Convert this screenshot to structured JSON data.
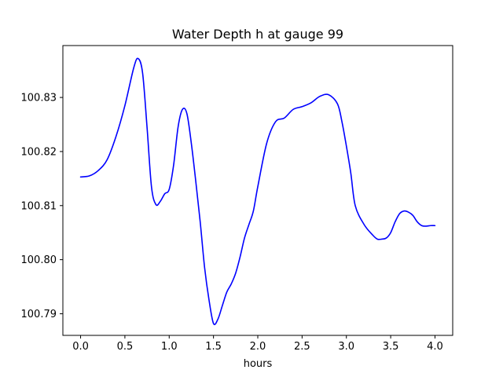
{
  "chart_data": {
    "type": "line",
    "title": "Water Depth h at gauge 99",
    "xlabel": "hours",
    "ylabel": "",
    "xlim": [
      -0.2,
      4.2
    ],
    "ylim": [
      100.786,
      100.8396
    ],
    "xticks": [
      0.0,
      0.5,
      1.0,
      1.5,
      2.0,
      2.5,
      3.0,
      3.5,
      4.0
    ],
    "xtick_labels": [
      "0.0",
      "0.5",
      "1.0",
      "1.5",
      "2.0",
      "2.5",
      "3.0",
      "3.5",
      "4.0"
    ],
    "yticks": [
      100.79,
      100.8,
      100.81,
      100.82,
      100.83
    ],
    "ytick_labels": [
      "100.79",
      "100.80",
      "100.81",
      "100.82",
      "100.83"
    ],
    "grid": false,
    "series": [
      {
        "color": "#0000ff",
        "x": [
          0.0,
          0.1,
          0.2,
          0.3,
          0.4,
          0.5,
          0.6,
          0.65,
          0.7,
          0.75,
          0.8,
          0.85,
          0.9,
          0.95,
          1.0,
          1.05,
          1.1,
          1.15,
          1.2,
          1.25,
          1.3,
          1.35,
          1.4,
          1.45,
          1.5,
          1.55,
          1.6,
          1.65,
          1.7,
          1.75,
          1.8,
          1.85,
          1.9,
          1.95,
          2.0,
          2.1,
          2.2,
          2.3,
          2.4,
          2.5,
          2.6,
          2.7,
          2.8,
          2.9,
          2.95,
          3.0,
          3.05,
          3.1,
          3.2,
          3.3,
          3.35,
          3.4,
          3.45,
          3.5,
          3.55,
          3.6,
          3.65,
          3.7,
          3.75,
          3.8,
          3.85,
          3.9,
          3.95,
          4.0
        ],
        "y": [
          100.8153,
          100.8155,
          100.8165,
          100.8185,
          100.8228,
          100.8285,
          100.8355,
          100.8372,
          100.8345,
          100.8245,
          100.8135,
          100.8102,
          100.8108,
          100.8122,
          100.813,
          100.8175,
          100.8245,
          100.8278,
          100.827,
          100.8215,
          100.8145,
          100.807,
          100.7985,
          100.7925,
          100.7882,
          100.789,
          100.7915,
          100.794,
          100.7955,
          100.7975,
          100.8005,
          100.804,
          100.8065,
          100.809,
          100.8135,
          100.8215,
          100.8255,
          100.8262,
          100.8278,
          100.8283,
          100.829,
          100.8302,
          100.8305,
          100.8288,
          100.8255,
          100.821,
          100.816,
          100.81,
          100.8065,
          100.8045,
          100.8038,
          100.8038,
          100.804,
          100.805,
          100.807,
          100.8085,
          100.809,
          100.8088,
          100.8082,
          100.807,
          100.8063,
          100.8062,
          100.8063,
          100.8063
        ]
      }
    ]
  }
}
